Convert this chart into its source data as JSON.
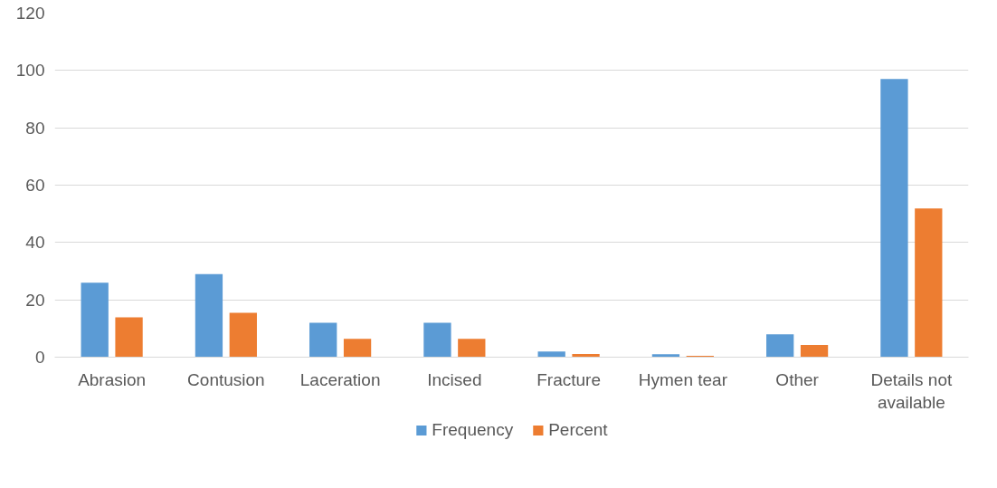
{
  "chart_data": {
    "type": "bar",
    "categories": [
      "Abrasion",
      "Contusion",
      "Laceration",
      "Incised",
      "Fracture",
      "Hymen tear",
      "Other",
      "Details not available"
    ],
    "series": [
      {
        "name": "Frequency",
        "color": "#5b9bd5",
        "values": [
          26,
          29,
          12,
          12,
          2,
          1,
          8,
          97
        ]
      },
      {
        "name": "Percent",
        "color": "#ed7d31",
        "values": [
          13.9,
          15.5,
          6.4,
          6.4,
          1.1,
          0.5,
          4.3,
          51.9
        ]
      }
    ],
    "ylim": [
      0,
      120
    ],
    "yticks": [
      0,
      20,
      40,
      60,
      80,
      100,
      120
    ],
    "grid": "y",
    "legend": "bottom"
  }
}
